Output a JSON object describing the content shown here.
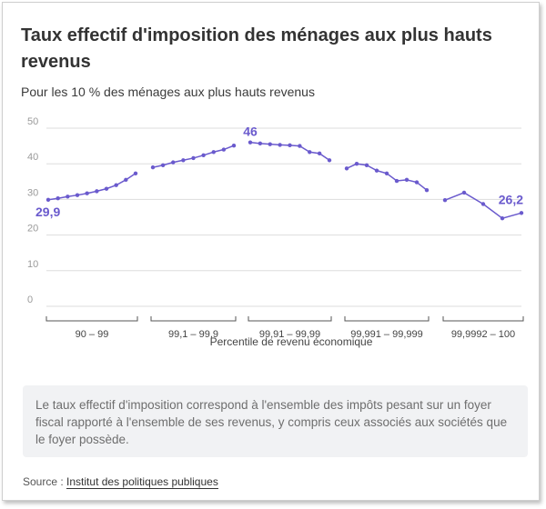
{
  "title": "Taux effectif d'imposition des ménages aux plus hauts revenus",
  "subtitle": "Pour les 10 % des ménages aux plus hauts revenus",
  "note": "Le taux effectif d'imposition correspond à l'ensemble des impôts pesant sur un foyer fiscal rapporté à l'ensemble de ses revenus, y compris ceux associés aux sociétés que le foyer possède.",
  "source": {
    "label": "Source :",
    "link_text": "Institut des politiques publiques"
  },
  "colors": {
    "series": "#6a5acd",
    "grid": "#dddddd"
  },
  "chart_data": {
    "type": "line",
    "title": "Taux effectif d'imposition des ménages aux plus hauts revenus",
    "xlabel": "Percentile de revenu économique",
    "ylabel": "",
    "ylim": [
      0,
      50
    ],
    "yticks": [
      0,
      10,
      20,
      30,
      40,
      50
    ],
    "groups": [
      {
        "label": "90 – 99",
        "values": [
          29.9,
          30.3,
          30.8,
          31.2,
          31.7,
          32.3,
          33.0,
          34.0,
          35.5,
          37.3
        ]
      },
      {
        "label": "99,1 – 99,9",
        "values": [
          39.0,
          39.6,
          40.4,
          41.0,
          41.6,
          42.4,
          43.3,
          44.0,
          45.1
        ]
      },
      {
        "label": "99,91 – 99,99",
        "values": [
          46.0,
          45.7,
          45.5,
          45.3,
          45.2,
          45.0,
          43.3,
          42.9,
          41.0
        ]
      },
      {
        "label": "99,991 – 99,999",
        "values": [
          38.7,
          40.0,
          39.6,
          38.1,
          37.3,
          35.2,
          35.5,
          34.8,
          32.6
        ]
      },
      {
        "label": "99,9992 – 100",
        "values": [
          29.8,
          31.9,
          28.7,
          24.7,
          26.2
        ]
      }
    ],
    "annotations": [
      {
        "text": "29,9",
        "group": 0,
        "index": 0
      },
      {
        "text": "46",
        "group": 2,
        "index": 0
      },
      {
        "text": "26,2",
        "group": 4,
        "index": 4
      }
    ]
  }
}
